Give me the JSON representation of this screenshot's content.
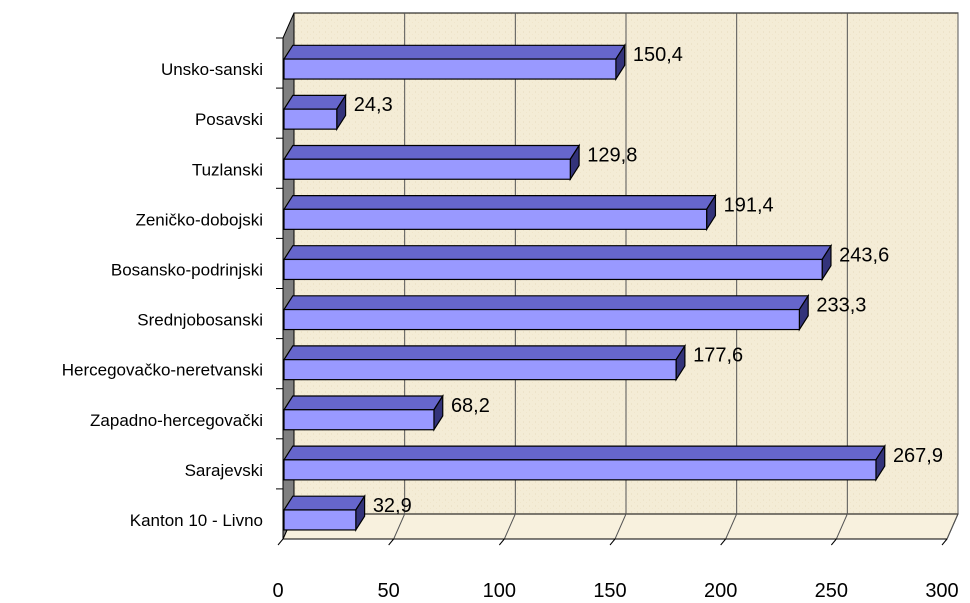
{
  "chart_data": {
    "type": "bar",
    "orientation": "horizontal",
    "style": "3d",
    "categories": [
      "Unsko-sanski",
      "Posavski",
      "Tuzlanski",
      "Zeničko-dobojski",
      "Bosansko-podrinjski",
      "Srednjobosanski",
      "Hercegovačko-neretvanski",
      "Zapadno-hercegovački",
      "Sarajevski",
      "Kanton 10 - Livno"
    ],
    "values": [
      150.4,
      24.3,
      129.8,
      191.4,
      243.6,
      233.3,
      177.6,
      68.2,
      267.9,
      32.9
    ],
    "value_labels": [
      "150,4",
      "24,3",
      "129,8",
      "191,4",
      "243,6",
      "233,3",
      "177,6",
      "68,2",
      "267,9",
      "32,9"
    ],
    "xlim": [
      0,
      300
    ],
    "xticks": [
      0,
      50,
      100,
      150,
      200,
      250,
      300
    ],
    "xtick_labels": [
      "0",
      "50",
      "100",
      "150",
      "200",
      "250",
      "300"
    ],
    "title": "",
    "xlabel": "",
    "ylabel": "",
    "grid": true,
    "legend": "none",
    "colors": {
      "bar_front": "#9999ff",
      "bar_top": "#6666cc",
      "bar_side": "#33337a",
      "plot_back": "#f4ecd6",
      "plot_floor": "#f8f1de",
      "plot_wall": "#808080"
    }
  }
}
